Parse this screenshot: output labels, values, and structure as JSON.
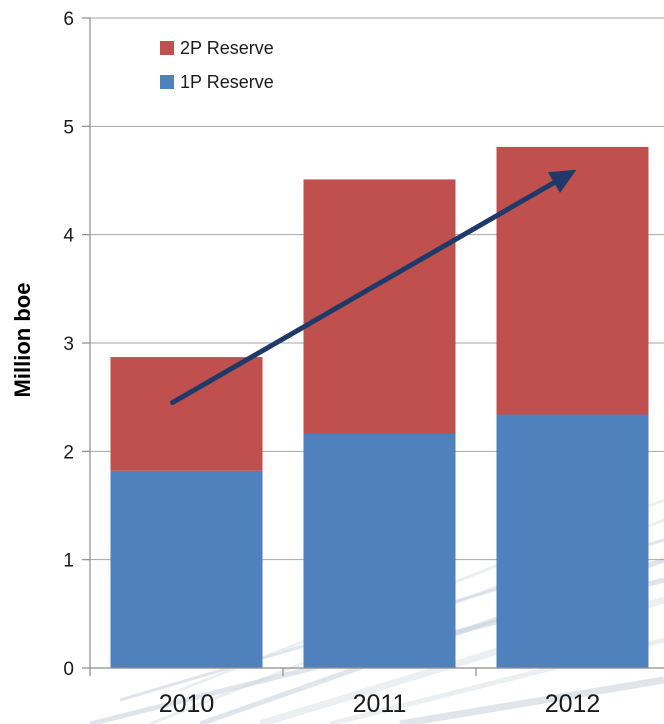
{
  "chart_data": {
    "type": "bar",
    "stacked": true,
    "categories": [
      "2010",
      "2011",
      "2012"
    ],
    "series": [
      {
        "name": "1P Reserve",
        "values": [
          1.82,
          2.16,
          2.34
        ],
        "color": "#4F81BD"
      },
      {
        "name": "2P Reserve",
        "values": [
          1.05,
          2.35,
          2.47
        ],
        "color": "#C0504D"
      }
    ],
    "ylabel": "Million boe",
    "ylim": [
      0,
      6
    ],
    "yticks": [
      "0",
      "1",
      "2",
      "3",
      "4",
      "5",
      "6"
    ],
    "grid": true,
    "legend_position": "top-left",
    "legend_order": [
      "2P Reserve",
      "1P Reserve"
    ],
    "trend_arrow": {
      "from_category": "2010",
      "from_value": 2.45,
      "to_category": "2012",
      "to_value": 4.6,
      "color": "#1F3A68"
    }
  }
}
